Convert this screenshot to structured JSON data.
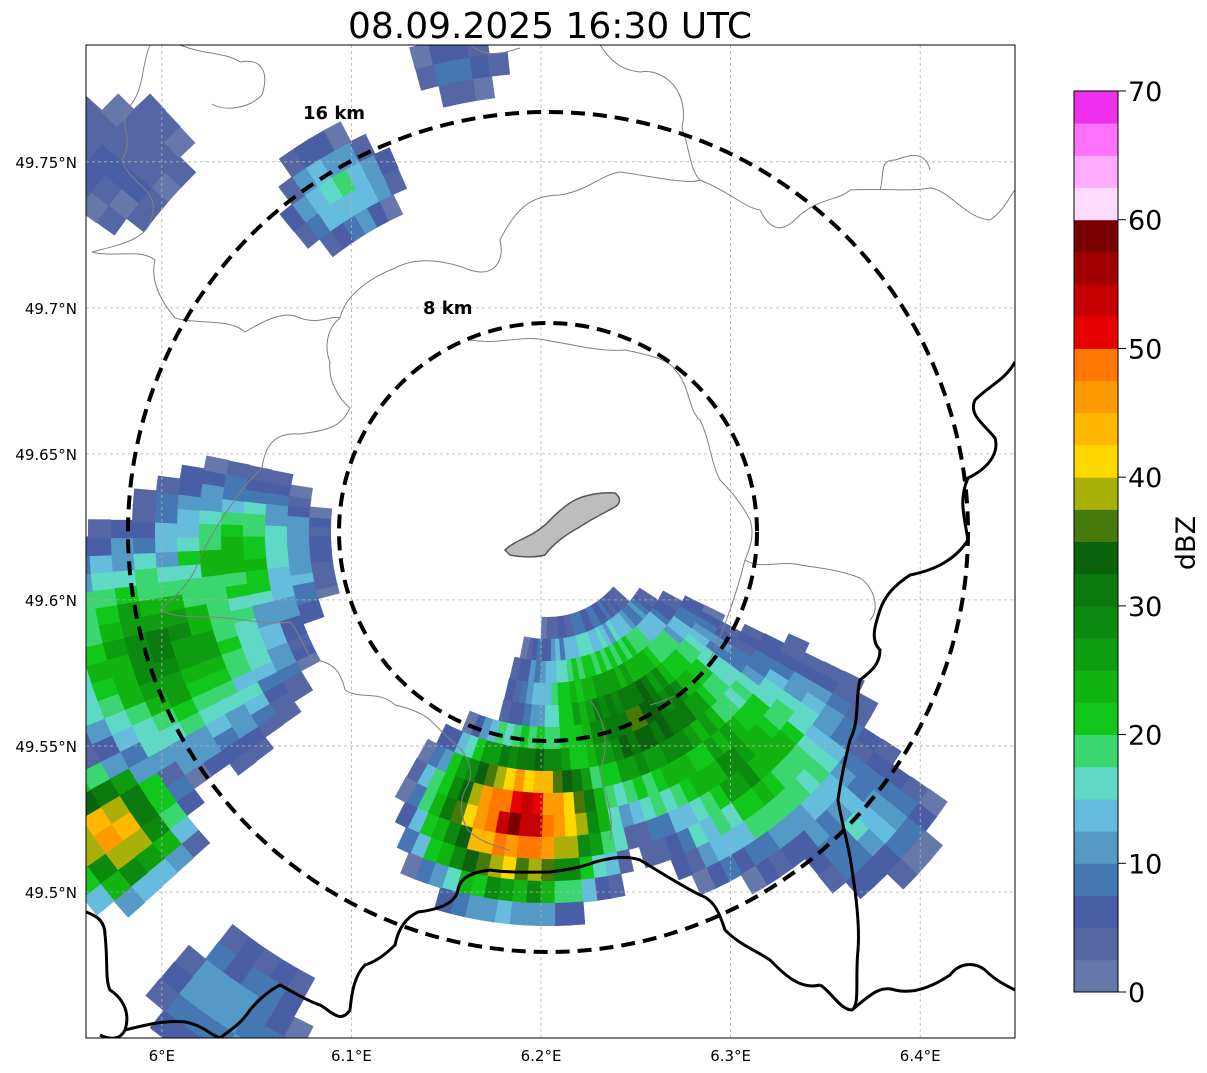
{
  "title": "08.09.2025 16:30 UTC",
  "axes": {
    "x_ticks": [
      {
        "label": "6°E",
        "value": 6.0
      },
      {
        "label": "6.1°E",
        "value": 6.1
      },
      {
        "label": "6.2°E",
        "value": 6.2
      },
      {
        "label": "6.3°E",
        "value": 6.3
      },
      {
        "label": "6.4°E",
        "value": 6.4
      }
    ],
    "y_ticks": [
      {
        "label": "49.75°N",
        "value": 49.75
      },
      {
        "label": "49.7°N",
        "value": 49.7
      },
      {
        "label": "49.65°N",
        "value": 49.65
      },
      {
        "label": "49.6°N",
        "value": 49.6
      },
      {
        "label": "49.55°N",
        "value": 49.55
      },
      {
        "label": "49.5°N",
        "value": 49.5
      }
    ],
    "lon_range": [
      5.96,
      6.45
    ],
    "lat_range": [
      49.45,
      49.79
    ],
    "grid": true
  },
  "range_rings": [
    {
      "label": "16 km",
      "radius_km": 16
    },
    {
      "label": "8 km",
      "radius_km": 8
    }
  ],
  "radar_site": {
    "lon": 6.203,
    "lat": 49.624
  },
  "colorbar": {
    "label": "dBZ",
    "ticks": [
      "0",
      "10",
      "20",
      "30",
      "40",
      "50",
      "60",
      "70"
    ],
    "min": 0,
    "max": 70,
    "step": 2.5,
    "colors": [
      "#6677aa",
      "#5566a4",
      "#4a5ea6",
      "#4577b2",
      "#5599c6",
      "#66bcdc",
      "#5fd9c6",
      "#3cd670",
      "#11c71c",
      "#12b412",
      "#0e9c10",
      "#0c8a10",
      "#0a7a0e",
      "#0b620d",
      "#457a0a",
      "#aab00a",
      "#ffd800",
      "#ffb800",
      "#ff9a00",
      "#ff7800",
      "#e60000",
      "#c60000",
      "#a00000",
      "#7a0000",
      "#ffdcff",
      "#ffacff",
      "#ff72ff",
      "#ee30ee"
    ]
  },
  "legend_colors": {
    "border": "#000000",
    "grid": "#b0b0b0",
    "admin_border": "#808080",
    "lake": "#bdbdbd"
  }
}
